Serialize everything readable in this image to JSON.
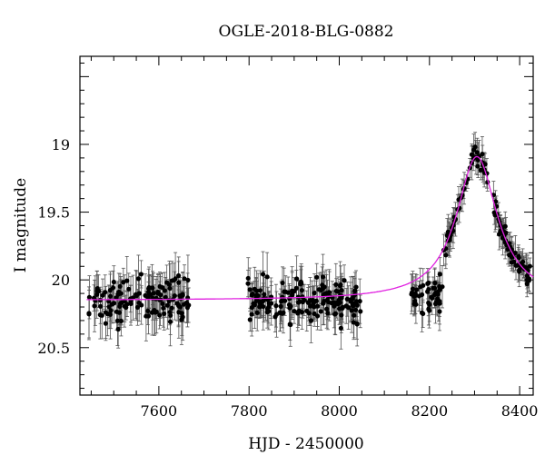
{
  "chart_data": {
    "type": "scatter",
    "title": "OGLE-2018-BLG-0882",
    "xlabel": "HJD - 2450000",
    "ylabel": "I magnitude",
    "xlim": [
      7425,
      8430
    ],
    "ylim": [
      20.85,
      18.35
    ],
    "y_inverted": true,
    "xticks": [
      7600,
      7800,
      8000,
      8200,
      8400
    ],
    "xtick_labels": [
      "7600",
      "7800",
      "8000",
      "8200",
      "8400"
    ],
    "yticks": [
      19,
      19.5,
      20,
      20.5
    ],
    "ytick_labels": [
      "19",
      "19.5",
      "20",
      "20.5"
    ],
    "grid": false,
    "legend": "none",
    "colors": {
      "points": "#000000",
      "model": "#e020e0"
    },
    "series": [
      {
        "kind": "points_with_errorbars",
        "seasons": [
          {
            "x_range": [
              7443,
              7670
            ],
            "baseline_mag": 20.15,
            "scatter_mag": 0.17,
            "err_mag": 0.15,
            "n_points": 130
          },
          {
            "x_range": [
              7797,
              8047
            ],
            "baseline_mag": 20.16,
            "scatter_mag": 0.16,
            "err_mag": 0.14,
            "n_points": 170
          },
          {
            "x_range": [
              8160,
              8230
            ],
            "baseline_mag": 20.12,
            "scatter_mag": 0.14,
            "err_mag": 0.12,
            "n_points": 45
          },
          {
            "x_range": [
              8230,
              8425
            ],
            "follows_model": true,
            "scatter_mag": 0.08,
            "err_mag": 0.1,
            "n_points": 110
          }
        ]
      },
      {
        "kind": "model_curve",
        "baseline_mag": 20.15,
        "peak_time": 8305,
        "peak_mag": 19.09,
        "timescale_days": 55,
        "x_range": [
          7440,
          8430
        ]
      }
    ]
  }
}
